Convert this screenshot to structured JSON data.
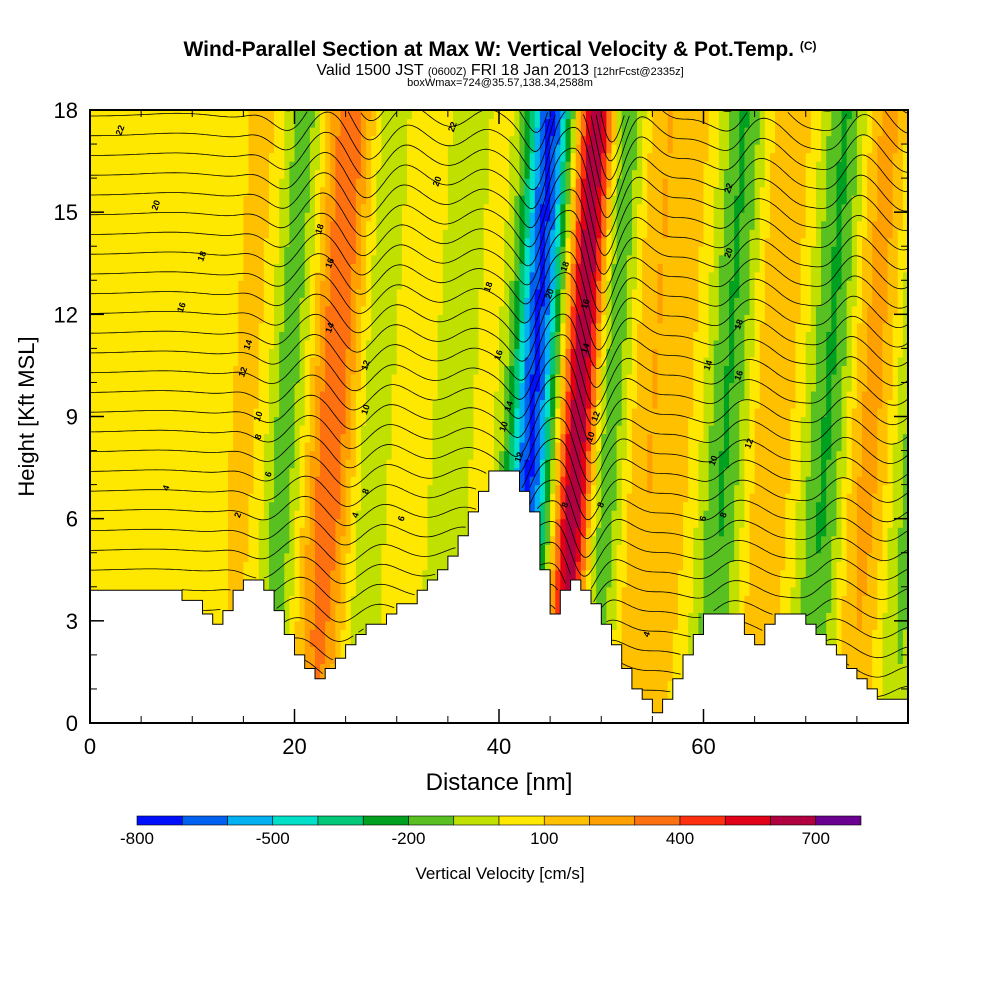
{
  "title": {
    "main": "Wind-Parallel Section at Max W: Vertical Velocity & Pot.Temp.",
    "copyright": "(C)",
    "valid_prefix": "Valid 1500 JST",
    "valid_utc": "(0600Z)",
    "valid_date": "FRI 18 Jan 2013",
    "forecast": "[12hrFcst@2335z]",
    "box_info": "boxWmax=724@35.57,138.34,2588m"
  },
  "chart_data": {
    "type": "heatmap",
    "xlabel": "Distance [nm]",
    "ylabel": "Height [Kft MSL]",
    "xlim": [
      0,
      80
    ],
    "ylim": [
      0,
      18
    ],
    "x_ticks": [
      0,
      20,
      40,
      60
    ],
    "y_ticks": [
      0,
      3,
      6,
      9,
      12,
      15,
      18
    ],
    "colorbar": {
      "label": "Vertical Velocity [cm/s]",
      "tick_labels": [
        "-800",
        "-500",
        "-200",
        "100",
        "400",
        "700"
      ],
      "tick_values": [
        -800,
        -500,
        -200,
        100,
        400,
        700
      ],
      "levels": [
        -800,
        -700,
        -600,
        -500,
        -400,
        -300,
        -200,
        -100,
        0,
        100,
        200,
        300,
        400,
        500,
        600,
        700,
        800
      ],
      "colors": [
        "#0010ff",
        "#0060f0",
        "#00b0f0",
        "#00e0c8",
        "#00c878",
        "#00a020",
        "#58c020",
        "#c0e000",
        "#ffe800",
        "#ffc000",
        "#ffa000",
        "#ff7010",
        "#ff3010",
        "#e00018",
        "#b00040",
        "#6a0090"
      ]
    },
    "w_bands": [
      {
        "x": 1,
        "w": 28,
        "sigma": 18
      },
      {
        "x": 9,
        "w": 58,
        "sigma": 4
      },
      {
        "x": 14,
        "w": 82,
        "sigma": 1.4
      },
      {
        "x": 17.5,
        "w": -190,
        "sigma": 1.5
      },
      {
        "x": 22,
        "w": 380,
        "sigma": 1.8
      },
      {
        "x": 26,
        "w": -150,
        "sigma": 1.8
      },
      {
        "x": 29.5,
        "w": 110,
        "sigma": 2.5
      },
      {
        "x": 33.5,
        "w": -110,
        "sigma": 2
      },
      {
        "x": 36.5,
        "w": 60,
        "sigma": 1.5
      },
      {
        "x": 41.5,
        "w": -720,
        "sigma": 1.5
      },
      {
        "x": 46,
        "w": 724,
        "sigma": 1.3
      },
      {
        "x": 49,
        "w": -230,
        "sigma": 1.4
      },
      {
        "x": 52.5,
        "w": 180,
        "sigma": 1.8
      },
      {
        "x": 56,
        "w": 120,
        "sigma": 1.8
      },
      {
        "x": 60.5,
        "w": -220,
        "sigma": 1.5
      },
      {
        "x": 65,
        "w": 200,
        "sigma": 1.8
      },
      {
        "x": 70.5,
        "w": -230,
        "sigma": 1.5
      },
      {
        "x": 74.5,
        "w": 240,
        "sigma": 1.8
      },
      {
        "x": 78.5,
        "w": -140,
        "sigma": 1.4
      }
    ],
    "terrain": [
      [
        0,
        3.9
      ],
      [
        5,
        3.9
      ],
      [
        9,
        3.9
      ],
      [
        9,
        3.6
      ],
      [
        11,
        3.6
      ],
      [
        11,
        3.2
      ],
      [
        12,
        3.2
      ],
      [
        12,
        2.9
      ],
      [
        13,
        2.9
      ],
      [
        13,
        3.3
      ],
      [
        14,
        3.3
      ],
      [
        14,
        3.9
      ],
      [
        15,
        3.9
      ],
      [
        15,
        4.2
      ],
      [
        17,
        4.2
      ],
      [
        17,
        3.9
      ],
      [
        18,
        3.9
      ],
      [
        18,
        3.3
      ],
      [
        19,
        3.3
      ],
      [
        19,
        2.6
      ],
      [
        20,
        2.6
      ],
      [
        20,
        2.0
      ],
      [
        21,
        2.0
      ],
      [
        21,
        1.6
      ],
      [
        22,
        1.6
      ],
      [
        22,
        1.3
      ],
      [
        23,
        1.3
      ],
      [
        23,
        1.6
      ],
      [
        24,
        1.6
      ],
      [
        24,
        1.9
      ],
      [
        25,
        1.9
      ],
      [
        25,
        2.3
      ],
      [
        26,
        2.3
      ],
      [
        26,
        2.6
      ],
      [
        27,
        2.6
      ],
      [
        27,
        2.9
      ],
      [
        29,
        2.9
      ],
      [
        29,
        3.2
      ],
      [
        30,
        3.2
      ],
      [
        30,
        3.5
      ],
      [
        32,
        3.5
      ],
      [
        32,
        3.9
      ],
      [
        33,
        3.9
      ],
      [
        33,
        4.2
      ],
      [
        34,
        4.2
      ],
      [
        34,
        4.5
      ],
      [
        35,
        4.5
      ],
      [
        35,
        4.9
      ],
      [
        36,
        4.9
      ],
      [
        36,
        5.5
      ],
      [
        37,
        5.5
      ],
      [
        37,
        6.2
      ],
      [
        38,
        6.2
      ],
      [
        38,
        6.8
      ],
      [
        39,
        6.8
      ],
      [
        39,
        7.4
      ],
      [
        42,
        7.4
      ],
      [
        42,
        6.8
      ],
      [
        43,
        6.8
      ],
      [
        43,
        6.2
      ],
      [
        44,
        6.2
      ],
      [
        44,
        4.5
      ],
      [
        45,
        4.5
      ],
      [
        45,
        3.2
      ],
      [
        46,
        3.2
      ],
      [
        46,
        3.9
      ],
      [
        47,
        3.9
      ],
      [
        47,
        4.2
      ],
      [
        48,
        4.2
      ],
      [
        48,
        3.9
      ],
      [
        49,
        3.9
      ],
      [
        49,
        3.5
      ],
      [
        50,
        3.5
      ],
      [
        50,
        2.9
      ],
      [
        51,
        2.9
      ],
      [
        51,
        2.3
      ],
      [
        52,
        2.3
      ],
      [
        52,
        1.6
      ],
      [
        53,
        1.6
      ],
      [
        53,
        1.0
      ],
      [
        54,
        1.0
      ],
      [
        54,
        0.7
      ],
      [
        55,
        0.7
      ],
      [
        55,
        0.3
      ],
      [
        56,
        0.3
      ],
      [
        56,
        0.7
      ],
      [
        57,
        0.7
      ],
      [
        57,
        1.3
      ],
      [
        58,
        1.3
      ],
      [
        58,
        2.0
      ],
      [
        59,
        2.0
      ],
      [
        59,
        2.6
      ],
      [
        60,
        2.6
      ],
      [
        60,
        3.2
      ],
      [
        64,
        3.2
      ],
      [
        64,
        2.6
      ],
      [
        65,
        2.6
      ],
      [
        65,
        2.3
      ],
      [
        66,
        2.3
      ],
      [
        66,
        2.9
      ],
      [
        67,
        2.9
      ],
      [
        67,
        3.2
      ],
      [
        70,
        3.2
      ],
      [
        70,
        2.9
      ],
      [
        71,
        2.9
      ],
      [
        71,
        2.6
      ],
      [
        72,
        2.6
      ],
      [
        72,
        2.3
      ],
      [
        73,
        2.3
      ],
      [
        73,
        2.0
      ],
      [
        74,
        2.0
      ],
      [
        74,
        1.6
      ],
      [
        75,
        1.6
      ],
      [
        75,
        1.3
      ],
      [
        76,
        1.3
      ],
      [
        76,
        1.0
      ],
      [
        77,
        1.0
      ],
      [
        77,
        0.7
      ],
      [
        80,
        0.7
      ]
    ],
    "theta_levels": [
      2,
      4,
      6,
      8,
      10,
      12,
      14,
      16,
      18,
      20,
      22
    ],
    "contour_labels": [
      {
        "text": "22",
        "x": 3,
        "y": 17.4
      },
      {
        "text": "20",
        "x": 6.5,
        "y": 15.2
      },
      {
        "text": "18",
        "x": 11,
        "y": 13.7
      },
      {
        "text": "16",
        "x": 9,
        "y": 12.2
      },
      {
        "text": "14",
        "x": 15.5,
        "y": 11.1
      },
      {
        "text": "12",
        "x": 15,
        "y": 10.3
      },
      {
        "text": "10",
        "x": 16.5,
        "y": 9.0
      },
      {
        "text": "8",
        "x": 16.5,
        "y": 8.4
      },
      {
        "text": "6",
        "x": 17.5,
        "y": 7.3
      },
      {
        "text": "4",
        "x": 7.5,
        "y": 6.9
      },
      {
        "text": "2",
        "x": 14.5,
        "y": 6.1
      },
      {
        "text": "18",
        "x": 22.5,
        "y": 14.5
      },
      {
        "text": "16",
        "x": 23.5,
        "y": 13.5
      },
      {
        "text": "14",
        "x": 23.5,
        "y": 11.6
      },
      {
        "text": "12",
        "x": 27,
        "y": 10.5
      },
      {
        "text": "10",
        "x": 27,
        "y": 9.2
      },
      {
        "text": "8",
        "x": 27,
        "y": 6.8
      },
      {
        "text": "4",
        "x": 26,
        "y": 6.1
      },
      {
        "text": "6",
        "x": 30.5,
        "y": 6.0
      },
      {
        "text": "22",
        "x": 35.5,
        "y": 17.5
      },
      {
        "text": "20",
        "x": 34,
        "y": 15.9
      },
      {
        "text": "18",
        "x": 39,
        "y": 12.8
      },
      {
        "text": "16",
        "x": 40,
        "y": 10.8
      },
      {
        "text": "14",
        "x": 41,
        "y": 9.3
      },
      {
        "text": "10",
        "x": 40.5,
        "y": 8.7
      },
      {
        "text": "12",
        "x": 42,
        "y": 7.8
      },
      {
        "text": "20",
        "x": 45,
        "y": 12.6
      },
      {
        "text": "18",
        "x": 46.5,
        "y": 13.4
      },
      {
        "text": "16",
        "x": 48.5,
        "y": 12.3
      },
      {
        "text": "14",
        "x": 48.5,
        "y": 11.0
      },
      {
        "text": "8",
        "x": 46.5,
        "y": 6.4
      },
      {
        "text": "12",
        "x": 49.5,
        "y": 9.0
      },
      {
        "text": "10",
        "x": 49,
        "y": 8.4
      },
      {
        "text": "8",
        "x": 50,
        "y": 6.4
      },
      {
        "text": "4",
        "x": 54.5,
        "y": 2.6
      },
      {
        "text": "22",
        "x": 62.5,
        "y": 15.7
      },
      {
        "text": "20",
        "x": 62.5,
        "y": 13.8
      },
      {
        "text": "18",
        "x": 63.5,
        "y": 11.7
      },
      {
        "text": "16",
        "x": 63.5,
        "y": 10.2
      },
      {
        "text": "14",
        "x": 60.5,
        "y": 10.5
      },
      {
        "text": "12",
        "x": 64.5,
        "y": 8.2
      },
      {
        "text": "10",
        "x": 61,
        "y": 7.7
      },
      {
        "text": "6",
        "x": 60,
        "y": 6.0
      },
      {
        "text": "8",
        "x": 62,
        "y": 6.1
      }
    ]
  }
}
